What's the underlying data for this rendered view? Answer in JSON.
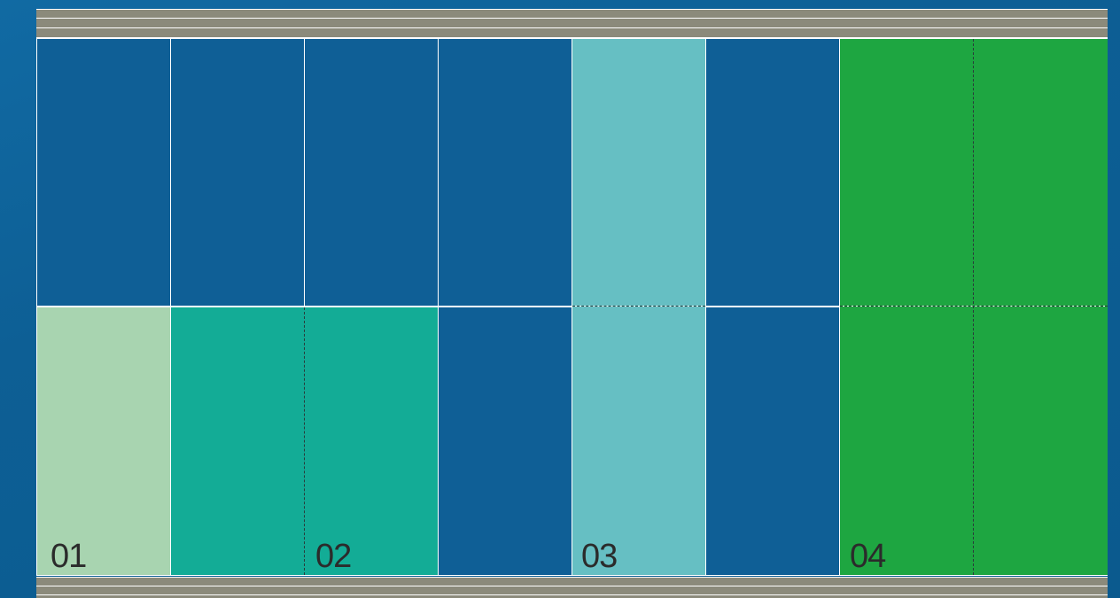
{
  "colors": {
    "background": "#0d5f95",
    "rail": "#8b8a7b",
    "navy": "#0f5f96",
    "mint": "#a8d4b0",
    "teal": "#13ac96",
    "aqua": "#66bfc3",
    "green": "#1ea641"
  },
  "columns": [
    {
      "top": "navy",
      "bottom": "mint"
    },
    {
      "top": "navy",
      "bottom": "teal"
    },
    {
      "top": "navy",
      "bottom": "teal"
    },
    {
      "top": "navy",
      "bottom": "navy"
    },
    {
      "top": "aqua",
      "bottom": "aqua"
    },
    {
      "top": "navy",
      "bottom": "navy"
    },
    {
      "top": "green",
      "bottom": "green"
    },
    {
      "top": "green",
      "bottom": "green"
    }
  ],
  "labels": {
    "l1": "01",
    "l2": "02",
    "l3": "03",
    "l4": "04"
  }
}
